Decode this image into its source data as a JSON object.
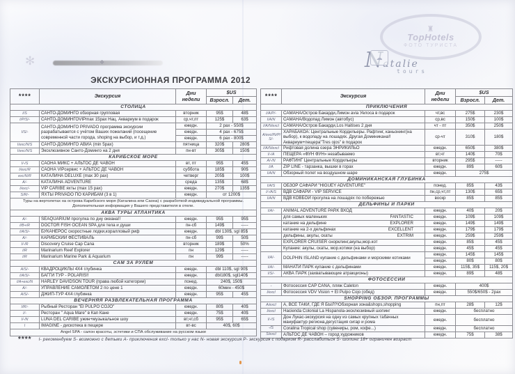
{
  "page": {
    "title": "ЭКСКУРСИОННАЯ ПРОГРАММА 2012"
  },
  "watermarks": {
    "tophotels_name": "TopHotels",
    "tophotels_sub": "ФОТО ТУРИСТА",
    "tophotels_building": "♜",
    "natalie_initial": "N",
    "natalie_rest": "atalie",
    "natalie_tours": "tours",
    "natalie_badge": "☁"
  },
  "artifacts": {
    "flower": "✻",
    "speck": "❖"
  },
  "table_header": {
    "stars": "****",
    "excursion": "Экскурсия",
    "days": "Дни недели",
    "currency": "$US",
    "adult": "Взросл.",
    "child": "Дет."
  },
  "left_table": {
    "sections": [
      {
        "title": "СТОЛИЦА",
        "rows": [
          {
            "code": "I/S",
            "name": "САНТО-ДОМИНГО обзорная групповая",
            "days": "вторник",
            "adult": "95$",
            "child": "48$"
          },
          {
            "code": "I/P/S/-",
            "name": "САНТО-ДОМИНГОVIPmax 15pax Нац. Аквариум в подарок",
            "days": "ср,чт,пт",
            "adult": "125$",
            "child": "63$"
          },
          {
            "code": "I/S/-",
            "name": "САНТО-ДОМИНГО PRIVADO программа экскурсии разрабатывается с учётом Ваших пожеланий (посещение современной части города, shoping на выбор, и т.д.)",
            "subrows": [
              {
                "days": "ежедн.",
                "span": "2 pax - 550$"
              },
              {
                "days": "ежедн.",
                "span": "4 pax - 675$"
              },
              {
                "days": "ежедн.",
                "span": "6 pax - 800$"
              }
            ]
          },
          {
            "code": "I/exc/N/S",
            "name": "САНТО-ДОМИНГО АВИА (min 5pax)",
            "days": "пятница",
            "adult": "320$",
            "child": "280$"
          },
          {
            "code": "I/exc/N/S",
            "name": "Эксклюзивное Санто-Доминго на 2 дня",
            "days": "пн-вт",
            "adult": "305$",
            "child": "150$"
          }
        ]
      },
      {
        "title": "КАРИБСКОЕ МОРЕ",
        "rows": [
          {
            "code": "I/-/S",
            "name": "САОНА МИКС + АЛЬТОС ДЕ ЧАВОН",
            "days": "вт, пт",
            "adult": "95$",
            "child": "45$"
          },
          {
            "code": "I/exc/R",
            "name": "САОНА VIPсервис + АЛЬТОС ДЕ ЧАВОН",
            "days": "суббота",
            "adult": "185$",
            "child": "90$"
          },
          {
            "code": "exc/N/R",
            "name": "КАТАЛИНА DELUXE (max 30 pax)",
            "days": "четверг",
            "adult": "205$",
            "child": "100$"
          },
          {
            "code": "A/-",
            "name": "КАТАЛИНА ADVENTURE",
            "days": "среда",
            "adult": "135$",
            "child": "68$"
          },
          {
            "code": "I/exc/-",
            "name": "VIP CARIBE яхты (max 15 pax)",
            "days": "ежедн.",
            "adult": "270$",
            "child": "135$"
          },
          {
            "code": "S/R/-",
            "name": "ЯХТЫ PRIVADO ПО КАРИБАМ (3 в 1)",
            "days": "ежедн.",
            "span": "от 1200$"
          },
          {
            "note": "Туры на вертолетах на острова Карибского моря (Каталина или Саона) с разработкой индивидуальной программы. Дополнительная информация у Вашего представителя в отеле."
          }
        ]
      },
      {
        "title": "АКВА ТУРЫ АТЛАНТИКА",
        "rows": [
          {
            "code": "A/-",
            "name": "SEAQUARIUM прогулка по дну океана!!",
            "days": "ежедн.",
            "adult": "95$",
            "child": "95$"
          },
          {
            "code": "I/B+/R",
            "name": "DOCTOR FISH OCEAN SPA для тела и души",
            "days": "пн-сб",
            "adult": "149$",
            "child": "-----"
          },
          {
            "code": "I/A/S/-",
            "name": "БУКАНЕРОС скоростные лодки,коралловый риф",
            "days": "ежедн.",
            "span": "dbl 130$, sgl 85$"
          },
          {
            "code": "A/-",
            "name": "КАРИБСКИЙ ФЕСТИВАЛЬ",
            "days": "пн-сб",
            "adult": "99$",
            "child": "50$"
          },
          {
            "code": "I/-/R",
            "name": "Discovery Cruise Cap Cana",
            "days": "вторник",
            "adult": "189$",
            "child": "50%"
          },
          {
            "code": "I/R",
            "name": "Marinarium Reef Explorer",
            "days": "пн",
            "adult": "129$",
            "child": "-----"
          },
          {
            "code": "I/R",
            "name": "Marinarium Marine Park & Aquarium",
            "days": "пн",
            "adult": "99$",
            "child": "-----"
          }
        ]
      },
      {
        "title": "САМ ЗА РУЛЁМ",
        "rows": [
          {
            "code": "A/S/-",
            "name": "КВАДРОЦИКЛЫ 4X4 глубинка",
            "days": "ежедн.",
            "span": "dbl 110$, sgl 90$"
          },
          {
            "code": "I/A/S/-",
            "name": "БАГГИ ТУР - POLARIS!!",
            "days": "ежедн.",
            "span": "dbl180$, sgl140$"
          },
          {
            "code": "I/A+exc/N",
            "name": "HARLEY DAVIDSON TOUR (права любой категории)",
            "days": "понед.",
            "span": "240$, 150$"
          },
          {
            "code": "A/-",
            "name": "УПРАВЛЕНИЕ САМОЛЁТОМ 2 по цене 1",
            "days": "ежедн.",
            "span": "60мин - 450$"
          },
          {
            "code": "A/S/-",
            "name": "ДЖИП-ТУР 4X4  глубинка",
            "days": "ежедн.",
            "adult": "95$",
            "child": "45$"
          }
        ]
      },
      {
        "title": "ВЕЧЕРНЯЯ РАЗВЛЕКАТЕЛЬНАЯ ПРОГРАММА",
        "rows": [
          {
            "code": "I/R/-",
            "name": "Рыбный Ресторан \"El PULPO COJO\"",
            "days": "ежедн.",
            "adult": "80$",
            "child": "40$"
          },
          {
            "code": "I/-",
            "name": "Ресторан \" Aqua Mare\" в Кап Кане",
            "days": "ежедн.",
            "adult": "75$",
            "child": "40$"
          },
          {
            "code": "I/-/N",
            "name": "LUNA DEL CARIBE ужин+музыкальное шоу",
            "days": "вт,чт,сб",
            "adult": "95$",
            "child": "65$"
          },
          {
            "code": "I",
            "name": "IMAGINE - дискотека в пещере",
            "days": "вт-вс",
            "span": "40$, 60$"
          },
          {
            "note": "Angel SPA - салон красоты, эстетики и СПА обслуживание на русском языке"
          }
        ]
      }
    ]
  },
  "right_table": {
    "sections": [
      {
        "title": "ПРИКЛЮЧЕНИЯ",
        "rows": [
          {
            "code": "I/A/P/-",
            "name": "САМАНА/Остров Бакарди,Лимон avia Уелоса в подарок",
            "days": "чт,вс",
            "adult": "275$",
            "child": "230$"
          },
          {
            "code": "I/A/N",
            "name": "САМАНА/Водопад Лимон (автобус)",
            "days": "ср,вс",
            "adult": "150$",
            "child": "100$"
          },
          {
            "code": "I/A/N/excl",
            "name": "САМАНА/Остров Бакарди,Los Haitises 2 дня",
            "days": "чт - пт",
            "adult": "350$",
            "child": "250$"
          },
          {
            "code": "A/excl/N/P/ S/-",
            "name": "ХАРАБАКОА: Центральные Кордильеры. Рафтинг, каньонинг(на выбор), к водопаду на лошадях. Другая Доминикана!! Аквариум+пещера\"Tres ojos\" в подарок",
            "days": "ср-чт",
            "adult": "310$",
            "child": "180$"
          },
          {
            "code": "I/A/N/excl",
            "name": "Рифтовая долина озера ЭНРИКИЛЬО",
            "days": "ежедн.",
            "adult": "650$",
            "child": "380$"
          },
          {
            "code": "I/-/A",
            "name": "ПЕЩЕРА «ФУН ФУН» незабываемо",
            "days": "вт,чт",
            "adult": "140$",
            "child": "70$"
          },
          {
            "code": "A/-/N",
            "name": "РАФТИНГ Центральные Кордильеры",
            "days": "вторник",
            "adult": "295$",
            "child": "-----"
          },
          {
            "code": "I/A",
            "name": "ZIP LINE - тарзанка, вышки в горах",
            "days": "ежедн.",
            "adult": "89$",
            "child": "60$"
          },
          {
            "code": "I/A/N",
            "name": "Обзорный полет на воздушном шаре",
            "days": "ежедн.",
            "span": "275$"
          }
        ]
      },
      {
        "title": "ДОМИНИКАНСКАЯ ГЛУБИНКА",
        "rows": [
          {
            "code": "I/A/S",
            "name": "ОБЗОР САФАРИ \"HIGUEY ADVENTURE\"",
            "days": "понед.",
            "adult": "85$",
            "child": "43$"
          },
          {
            "code": "I/-/A/S",
            "name": "ВДВ САФАРИ - VIP SERVICE",
            "days": "пн,ср,чт,пт",
            "adult": "130$",
            "child": "65$"
          },
          {
            "code": "I/A/N",
            "name": "ВДВ КОВБОЙ прогулка на лошадях по побережью",
            "days": "воскр",
            "adult": "85$",
            "child": "85$"
          }
        ]
      },
      {
        "title": "ДЕЛЬФИНЫ И ПАРКИ",
        "rows": [
          {
            "code": "I/A/-",
            "name": "ANIMAL ADVENTURE PARK ВХОД",
            "days": "ежедн.",
            "adult": "40$",
            "child": "20$"
          },
          {
            "code": "",
            "name": "для самых маленьких",
            "name_right": "FANTASTIC",
            "days": "ежедн.",
            "adult": "109$",
            "child": "109$"
          },
          {
            "code": "",
            "name": "катание на дельфине",
            "name_right": "EXPLORER",
            "days": "ежедн.",
            "adult": "149$",
            "child": "149$"
          },
          {
            "code": "",
            "name": "катание на 2-х дельфинах",
            "name_right": "EXCELLENT",
            "days": "ежедн.",
            "adult": "179$",
            "child": "179$"
          },
          {
            "code": "",
            "name": "дельфины, акулы, скаты",
            "name_right": "EXTRIM",
            "days": "ежедн.",
            "adult": "259$",
            "child": "259$"
          },
          {
            "code": "",
            "name": "EXPLORER CRUISER снорклинг,акулы,мор.кот",
            "days": "ежедн.",
            "adult": "85$",
            "child": "45$"
          },
          {
            "code": "",
            "name": "Купание: акулы, скаты, мор.котики (на выбор)",
            "days": "ежедн.",
            "adult": "45$",
            "child": "45$"
          },
          {
            "code": "I/A/-",
            "name": "DOLPHIN ISLAND купание с дельфинами и морскими котиками",
            "subrows": [
              {
                "days": "ежедн.",
                "adult": "145$",
                "child": "145$"
              },
              {
                "days": "ежедн.",
                "adult": "80$",
                "child": "80$"
              }
            ]
          },
          {
            "code": "I/A/-",
            "name": "МАНАТИ ПАРК купание с дельфинами",
            "days": "ежедн.",
            "adult": "115$, 35$",
            "child": "115$, 20$"
          },
          {
            "code": "I/S/-",
            "name": "АКВА ПАРК (захватывающие атракционы)",
            "days": "ежедн.",
            "adult": "89$",
            "child": "48$"
          }
        ]
      },
      {
        "title": "ФОТОСЕССИИ",
        "rows": [
          {
            "code": "-",
            "name": "Фотосессия CAP CANA, пляж Caleton",
            "days": "ежедн.",
            "span": "400$"
          },
          {
            "code": "I/excl",
            "name": "Фотосессия VDV Vision + El Pulpo Cojo (обед)",
            "days": "ежедн.",
            "span": "550$/650$ - 2pax"
          }
        ]
      },
      {
        "title": "SHOPPING ОБЗОР. ПРОГРАММЫ",
        "rows": [
          {
            "code": "A/excl",
            "name": "А, ВСЕ ТАКИ, ГДЕ Я БЫЛ?!Обзорная зона&shops,shopping",
            "days": "пн,пт",
            "adult": "28$",
            "child": "12$"
          },
          {
            "code": "I/excl",
            "name": "Hacienda Colonial La Hispanola-эксклюзивный шопинг",
            "days": "ежедн.",
            "span": "бесплатно"
          },
          {
            "code": "I/-/S",
            "name": "Дон Лукас-экскурсия на одну из самых крупных табачных мануфактур региона,дегустация сигар и рома",
            "days": "ежедн.",
            "span": "бесплатно"
          },
          {
            "code": "-/S",
            "name": "Coralina Tropical shop (сувениры, ром, кофе...)",
            "days": "ежедн.",
            "span": "бесплатно"
          },
          {
            "code": "S/excl",
            "name": "АЛЬТОС ДЕ ЧАВОН – город художников",
            "days": "ежедн.",
            "adult": "75$",
            "child": "38$"
          }
        ]
      }
    ]
  },
  "legend": {
    "stars": "****",
    "text": "I- рекомендуем  S- возможно с детьми  A- приключения  excl- только у нас  N- новая экскурсия  P- экскурсия с подарком  R- расслабиться  S- шопинг  18+ ограничен возраст"
  },
  "colors": {
    "paper_tint": "#f5f6fa",
    "ink": "#2e2e31",
    "watermark": "#c0bfd2"
  }
}
